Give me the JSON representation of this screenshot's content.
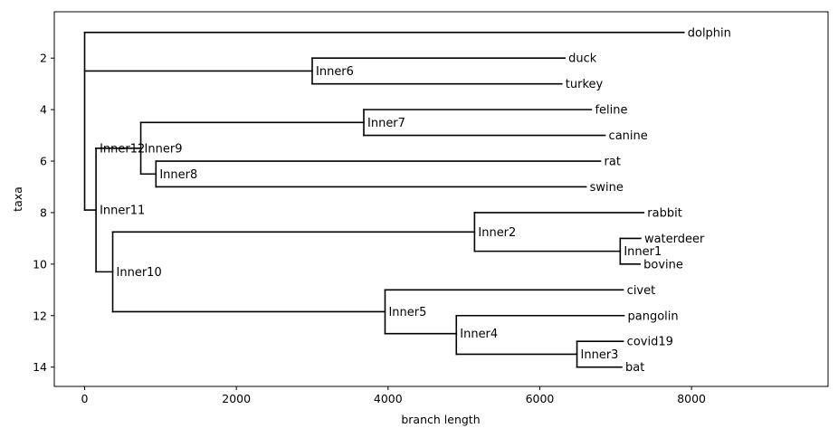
{
  "figure": {
    "xlabel": "branch length",
    "ylabel": "taxa",
    "xlim": [
      -400,
      9800
    ],
    "ylim": [
      14.75,
      0.2
    ],
    "xticks": [
      0,
      2000,
      4000,
      6000,
      8000
    ],
    "yticks": [
      2,
      4,
      6,
      8,
      10,
      12,
      14
    ]
  },
  "chart_data": {
    "type": "phylogenetic-tree",
    "xlabel": "branch length",
    "ylabel": "taxa",
    "nodes": [
      {
        "id": "root",
        "label": "",
        "x": 0,
        "y": 7.9,
        "parent": null
      },
      {
        "id": "dolphin",
        "label": "dolphin",
        "x": 7900,
        "y": 1,
        "parent": "root"
      },
      {
        "id": "Inner6",
        "label": "Inner6",
        "x": 3000,
        "y": 2.5,
        "parent": "root"
      },
      {
        "id": "duck",
        "label": "duck",
        "x": 6330,
        "y": 2,
        "parent": "Inner6"
      },
      {
        "id": "turkey",
        "label": "turkey",
        "x": 6290,
        "y": 3,
        "parent": "Inner6"
      },
      {
        "id": "Inner11",
        "label": "Inner11",
        "x": 150,
        "y": 7.9,
        "parent": "root"
      },
      {
        "id": "Inner12",
        "label": "Inner12",
        "x": 150,
        "y": 5.5,
        "parent": "Inner11"
      },
      {
        "id": "Inner9",
        "label": "Inner9",
        "x": 740,
        "y": 5.5,
        "parent": "Inner12"
      },
      {
        "id": "Inner7",
        "label": "Inner7",
        "x": 3680,
        "y": 4.5,
        "parent": "Inner9"
      },
      {
        "id": "feline",
        "label": "feline",
        "x": 6680,
        "y": 4,
        "parent": "Inner7"
      },
      {
        "id": "canine",
        "label": "canine",
        "x": 6860,
        "y": 5,
        "parent": "Inner7"
      },
      {
        "id": "Inner8",
        "label": "Inner8",
        "x": 940,
        "y": 6.5,
        "parent": "Inner9"
      },
      {
        "id": "rat",
        "label": "rat",
        "x": 6800,
        "y": 6,
        "parent": "Inner8"
      },
      {
        "id": "swine",
        "label": "swine",
        "x": 6610,
        "y": 7,
        "parent": "Inner8"
      },
      {
        "id": "Inner10",
        "label": "Inner10",
        "x": 370,
        "y": 10.3,
        "parent": "Inner11"
      },
      {
        "id": "Inner2",
        "label": "Inner2",
        "x": 5140,
        "y": 8.75,
        "parent": "Inner10"
      },
      {
        "id": "rabbit",
        "label": "rabbit",
        "x": 7370,
        "y": 8,
        "parent": "Inner2"
      },
      {
        "id": "Inner1",
        "label": "Inner1",
        "x": 7060,
        "y": 9.5,
        "parent": "Inner2"
      },
      {
        "id": "waterdeer",
        "label": "waterdeer",
        "x": 7330,
        "y": 9,
        "parent": "Inner1"
      },
      {
        "id": "bovine",
        "label": "bovine",
        "x": 7320,
        "y": 10,
        "parent": "Inner1"
      },
      {
        "id": "Inner5",
        "label": "Inner5",
        "x": 3960,
        "y": 11.85,
        "parent": "Inner10"
      },
      {
        "id": "civet",
        "label": "civet",
        "x": 7100,
        "y": 11,
        "parent": "Inner5"
      },
      {
        "id": "Inner4",
        "label": "Inner4",
        "x": 4900,
        "y": 12.7,
        "parent": "Inner5"
      },
      {
        "id": "pangolin",
        "label": "pangolin",
        "x": 7110,
        "y": 12,
        "parent": "Inner4"
      },
      {
        "id": "Inner3",
        "label": "Inner3",
        "x": 6490,
        "y": 13.5,
        "parent": "Inner4"
      },
      {
        "id": "covid19",
        "label": "covid19",
        "x": 7100,
        "y": 13,
        "parent": "Inner3"
      },
      {
        "id": "bat",
        "label": "bat",
        "x": 7080,
        "y": 14,
        "parent": "Inner3"
      }
    ]
  }
}
